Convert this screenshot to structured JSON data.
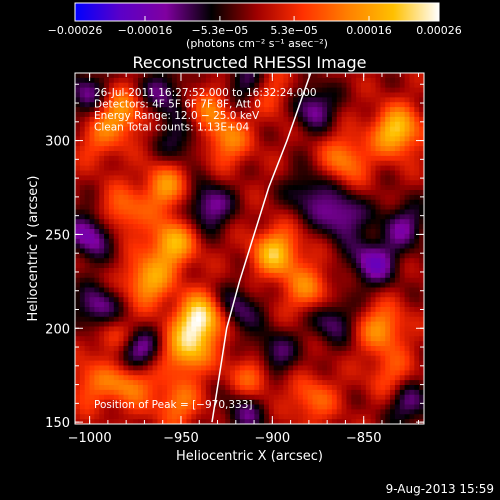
{
  "chart_data": {
    "type": "heatmap",
    "title": "Reconstructed RHESSI Image",
    "xlabel": "Heliocentric X (arcsec)",
    "ylabel": "Heliocentric Y (arcsec)",
    "xlim": [
      -1008,
      -817
    ],
    "ylim": [
      149,
      336
    ],
    "xticks": [
      -1000,
      -950,
      -900,
      -850
    ],
    "xtick_labels": [
      "−1000",
      "−950",
      "−900",
      "−850"
    ],
    "yticks": [
      150,
      200,
      250,
      300
    ],
    "ytick_labels": [
      "150",
      "200",
      "250",
      "300"
    ],
    "colorbar": {
      "range": [
        -0.00026,
        0.00026
      ],
      "ticks": [
        -0.00026,
        -0.00016,
        -5.3e-05,
        5.3e-05,
        0.00016,
        0.00026
      ],
      "tick_labels": [
        "−0.00026",
        "−0.00016",
        "−5.3e−05",
        "5.3e−05",
        "0.00016",
        "0.00026"
      ],
      "unit_label": "(photons cm⁻² s⁻¹ asec⁻²)",
      "colors": [
        "#0000ff",
        "#5b00c8",
        "#8000a0",
        "#000000",
        "#a00000",
        "#ff3000",
        "#ff8000",
        "#ffc000",
        "#ffffff"
      ]
    },
    "info_lines": [
      "26-Jul-2011 16:27:52.000 to 16:32:24.000",
      "Detectors: 4F 5F 6F 7F 8F, Att 0",
      "Energy Range: 12.0 − 25.0 keV",
      "Clean     Total counts: 1.13E+04"
    ],
    "peak_label": "Position of Peak = [−970,333]",
    "limb_curve": [
      [
        -933,
        150
      ],
      [
        -929,
        175
      ],
      [
        -925,
        200
      ],
      [
        -918,
        225
      ],
      [
        -910,
        250
      ],
      [
        -902,
        275
      ],
      [
        -892,
        300
      ],
      [
        -883,
        325
      ],
      [
        -879,
        336
      ]
    ],
    "hotspots": [
      {
        "x": -939,
        "y": 205,
        "amp": 1.0
      },
      {
        "x": -947,
        "y": 188,
        "amp": 0.7
      },
      {
        "x": -968,
        "y": 225,
        "amp": 0.65
      },
      {
        "x": -955,
        "y": 245,
        "amp": 0.7
      },
      {
        "x": -958,
        "y": 275,
        "amp": 0.55
      },
      {
        "x": -983,
        "y": 315,
        "amp": 0.6
      },
      {
        "x": -982,
        "y": 262,
        "amp": 0.45
      },
      {
        "x": -985,
        "y": 195,
        "amp": 0.55
      },
      {
        "x": -978,
        "y": 172,
        "amp": 0.6
      },
      {
        "x": -952,
        "y": 160,
        "amp": 0.45
      },
      {
        "x": -910,
        "y": 175,
        "amp": 0.5
      },
      {
        "x": -898,
        "y": 240,
        "amp": 0.75
      },
      {
        "x": -880,
        "y": 220,
        "amp": 0.5
      },
      {
        "x": -925,
        "y": 300,
        "amp": 0.5
      },
      {
        "x": -900,
        "y": 325,
        "amp": 0.35
      },
      {
        "x": -935,
        "y": 318,
        "amp": 0.4
      },
      {
        "x": -832,
        "y": 305,
        "amp": 0.8
      },
      {
        "x": -860,
        "y": 290,
        "amp": 0.5
      },
      {
        "x": -840,
        "y": 200,
        "amp": 0.55
      },
      {
        "x": -835,
        "y": 175,
        "amp": 0.35
      },
      {
        "x": -878,
        "y": 162,
        "amp": 0.4
      },
      {
        "x": -1000,
        "y": 170,
        "amp": 0.35
      },
      {
        "x": -995,
        "y": 300,
        "amp": 0.3
      }
    ],
    "coldspots": [
      {
        "x": -1000,
        "y": 250,
        "amp": 0.6
      },
      {
        "x": -995,
        "y": 210,
        "amp": 0.55
      },
      {
        "x": -976,
        "y": 188,
        "amp": 0.8
      },
      {
        "x": -935,
        "y": 265,
        "amp": 0.55
      },
      {
        "x": -920,
        "y": 210,
        "amp": 0.45
      },
      {
        "x": -900,
        "y": 185,
        "amp": 0.5
      },
      {
        "x": -868,
        "y": 205,
        "amp": 0.45
      },
      {
        "x": -862,
        "y": 260,
        "amp": 0.55
      },
      {
        "x": -845,
        "y": 235,
        "amp": 0.6
      },
      {
        "x": -828,
        "y": 255,
        "amp": 0.45
      },
      {
        "x": -878,
        "y": 318,
        "amp": 0.5
      },
      {
        "x": -915,
        "y": 330,
        "amp": 0.4
      },
      {
        "x": -960,
        "y": 325,
        "amp": 0.45
      },
      {
        "x": -1002,
        "y": 325,
        "amp": 0.45
      },
      {
        "x": -880,
        "y": 272,
        "amp": 0.4
      },
      {
        "x": -825,
        "y": 160,
        "amp": 0.45
      },
      {
        "x": -915,
        "y": 155,
        "amp": 0.4
      },
      {
        "x": -950,
        "y": 300,
        "amp": 0.35
      }
    ]
  },
  "footer": {
    "timestamp": "9-Aug-2013 15:59"
  }
}
